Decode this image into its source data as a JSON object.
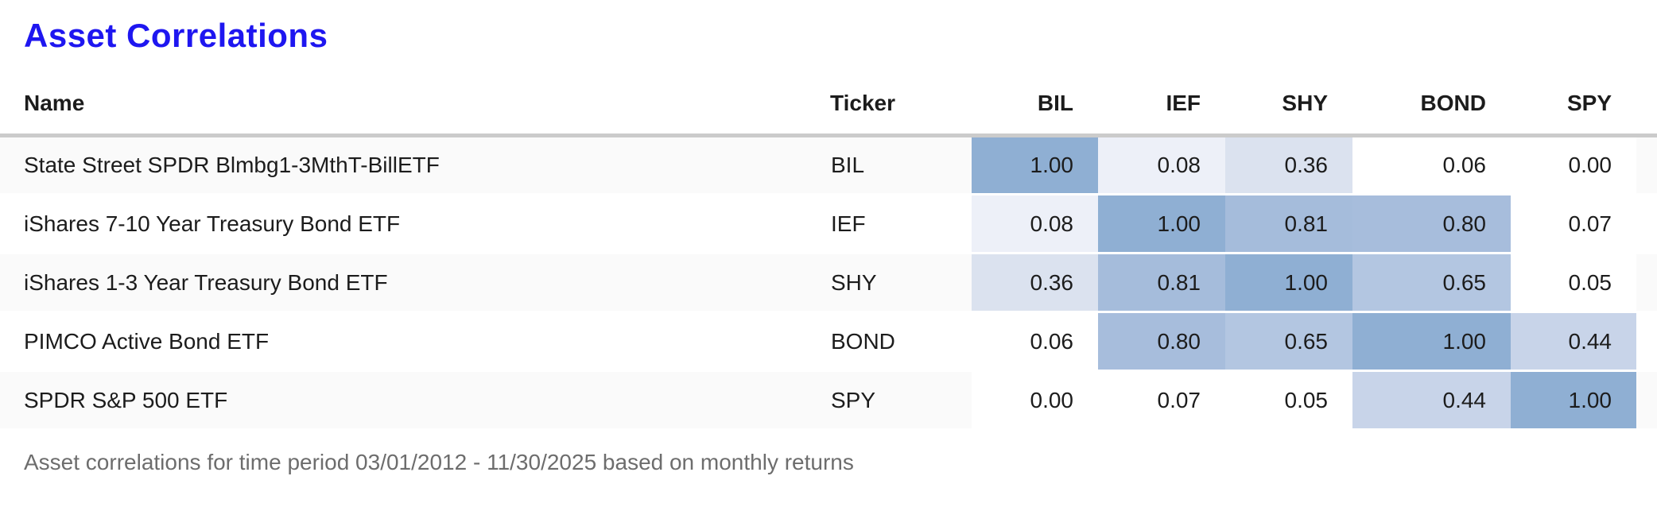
{
  "page": {
    "title": "Asset Correlations",
    "footnote": "Asset correlations for time period 03/01/2012 - 11/30/2025 based on monthly returns"
  },
  "table": {
    "columns": [
      "Name",
      "Ticker",
      "BIL",
      "IEF",
      "SHY",
      "BOND",
      "SPY"
    ],
    "rows": [
      {
        "name": "State Street SPDR Blmbg1-3MthT-BillETF",
        "ticker": "BIL",
        "values": [
          "1.00",
          "0.08",
          "0.36",
          "0.06",
          "0.00"
        ]
      },
      {
        "name": "iShares 7-10 Year Treasury Bond ETF",
        "ticker": "IEF",
        "values": [
          "0.08",
          "1.00",
          "0.81",
          "0.80",
          "0.07"
        ]
      },
      {
        "name": "iShares 1-3 Year Treasury Bond ETF",
        "ticker": "SHY",
        "values": [
          "0.36",
          "0.81",
          "1.00",
          "0.65",
          "0.05"
        ]
      },
      {
        "name": "PIMCO Active Bond ETF",
        "ticker": "BOND",
        "values": [
          "0.06",
          "0.80",
          "0.65",
          "1.00",
          "0.44"
        ]
      },
      {
        "name": "SPDR S&P 500 ETF",
        "ticker": "SPY",
        "values": [
          "0.00",
          "0.07",
          "0.05",
          "0.44",
          "1.00"
        ]
      }
    ]
  },
  "heat_colors": {
    "1.00": "#8fafd3",
    "0.81": "#a5bcdb",
    "0.80": "#a7bddc",
    "0.65": "#b3c6e1",
    "0.44": "#c8d4e9",
    "0.36": "#dbe2ef",
    "0.08": "#edf0f8",
    "default": "#ffffff"
  },
  "colors": {
    "title": "#1e16f0",
    "text": "#1c1c1c",
    "footnote": "#6d6d6d",
    "row_stripe": "#fafafa",
    "header_rule": "#cbcbcb"
  },
  "chart_data": {
    "type": "heatmap",
    "title": "Asset Correlations",
    "row_labels": [
      "BIL",
      "IEF",
      "SHY",
      "BOND",
      "SPY"
    ],
    "col_labels": [
      "BIL",
      "IEF",
      "SHY",
      "BOND",
      "SPY"
    ],
    "asset_names": [
      "State Street SPDR Blmbg1-3MthT-BillETF",
      "iShares 7-10 Year Treasury Bond ETF",
      "iShares 1-3 Year Treasury Bond ETF",
      "PIMCO Active Bond ETF",
      "SPDR S&P 500 ETF"
    ],
    "matrix": [
      [
        1.0,
        0.08,
        0.36,
        0.06,
        0.0
      ],
      [
        0.08,
        1.0,
        0.81,
        0.8,
        0.07
      ],
      [
        0.36,
        0.81,
        1.0,
        0.65,
        0.05
      ],
      [
        0.06,
        0.8,
        0.65,
        1.0,
        0.44
      ],
      [
        0.0,
        0.07,
        0.05,
        0.44,
        1.0
      ]
    ],
    "color_scale": {
      "min_color": "#ffffff",
      "max_color": "#8fafd3",
      "domain": [
        0,
        1
      ]
    },
    "legend_position": "none",
    "note": "Asset correlations for time period 03/01/2012 - 11/30/2025 based on monthly returns"
  }
}
